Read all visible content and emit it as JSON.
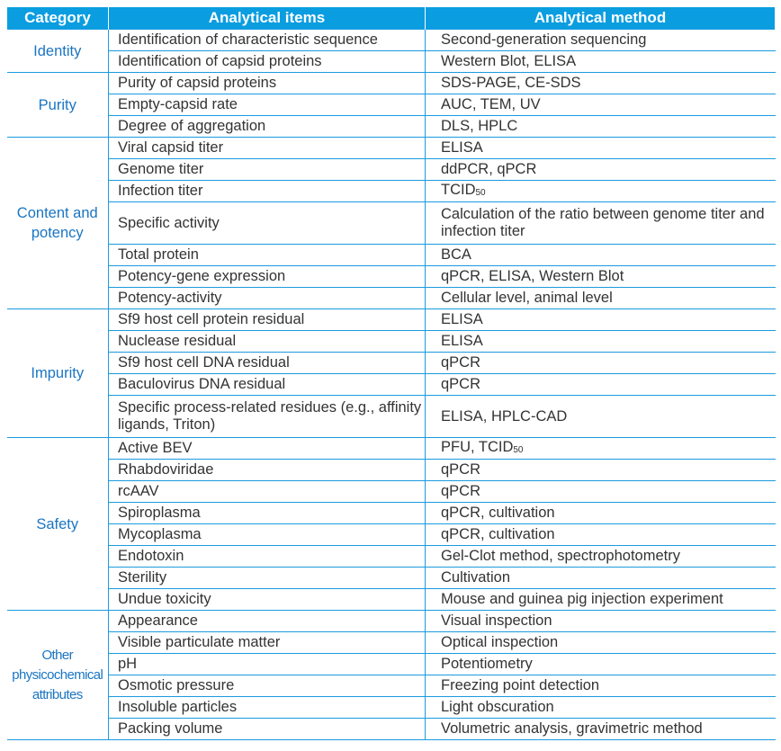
{
  "headers": {
    "category": "Category",
    "items": "Analytical items",
    "method": "Analytical method"
  },
  "groups": [
    {
      "category": "Identity",
      "rows": [
        {
          "item": "Identification of characteristic sequence",
          "method": "Second-generation sequencing"
        },
        {
          "item": "Identification of capsid proteins",
          "method": "Western Blot, ELISA"
        }
      ]
    },
    {
      "category": "Purity",
      "rows": [
        {
          "item": "Purity of capsid proteins",
          "method": "SDS-PAGE, CE-SDS"
        },
        {
          "item": "Empty-capsid rate",
          "method": "AUC, TEM, UV"
        },
        {
          "item": "Degree of aggregation",
          "method": "DLS, HPLC"
        }
      ]
    },
    {
      "category": "Content and potency",
      "rows": [
        {
          "item": "Viral capsid titer",
          "method": "ELISA"
        },
        {
          "item": "Genome titer",
          "method": "ddPCR, qPCR"
        },
        {
          "item": "Infection titer",
          "method": "TCID",
          "method_sub": "50"
        },
        {
          "item": "Specific activity",
          "method": "Calculation of the ratio between genome titer and infection titer",
          "double": true
        },
        {
          "item": "Total protein",
          "method": "BCA"
        },
        {
          "item": "Potency-gene expression",
          "method": "qPCR, ELISA, Western Blot"
        },
        {
          "item": "Potency-activity",
          "method": "Cellular level, animal level"
        }
      ]
    },
    {
      "category": "Impurity",
      "rows": [
        {
          "item": "Sf9 host cell protein residual",
          "method": "ELISA"
        },
        {
          "item": "Nuclease residual",
          "method": "ELISA"
        },
        {
          "item": "Sf9 host cell DNA residual",
          "method": "qPCR"
        },
        {
          "item": "Baculovirus DNA residual",
          "method": "qPCR"
        },
        {
          "item": "Specific process-related residues (e.g., affinity ligands, Triton)",
          "method": "ELISA, HPLC-CAD",
          "double": true
        }
      ]
    },
    {
      "category": "Safety",
      "rows": [
        {
          "item": "Active BEV",
          "method": "PFU, TCID",
          "method_sub": "50"
        },
        {
          "item": "Rhabdoviridae",
          "method": "qPCR"
        },
        {
          "item": "rcAAV",
          "method": "qPCR"
        },
        {
          "item": "Spiroplasma",
          "method": "qPCR, cultivation"
        },
        {
          "item": "Mycoplasma",
          "method": "qPCR, cultivation"
        },
        {
          "item": "Endotoxin",
          "method": "Gel-Clot method, spectrophotometry"
        },
        {
          "item": "Sterility",
          "method": "Cultivation"
        },
        {
          "item": "Undue toxicity",
          "method": "Mouse and guinea pig injection experiment"
        }
      ]
    },
    {
      "category": "Other physicochemical attributes",
      "small": true,
      "rows": [
        {
          "item": "Appearance",
          "method": "Visual inspection"
        },
        {
          "item": "Visible particulate matter",
          "method": "Optical inspection"
        },
        {
          "item": "pH",
          "method": "Potentiometry"
        },
        {
          "item": "Osmotic pressure",
          "method": "Freezing point detection"
        },
        {
          "item": "Insoluble particles",
          "method": "Light obscuration"
        },
        {
          "item": "Packing volume",
          "method": "Volumetric analysis, gravimetric method"
        }
      ]
    }
  ]
}
